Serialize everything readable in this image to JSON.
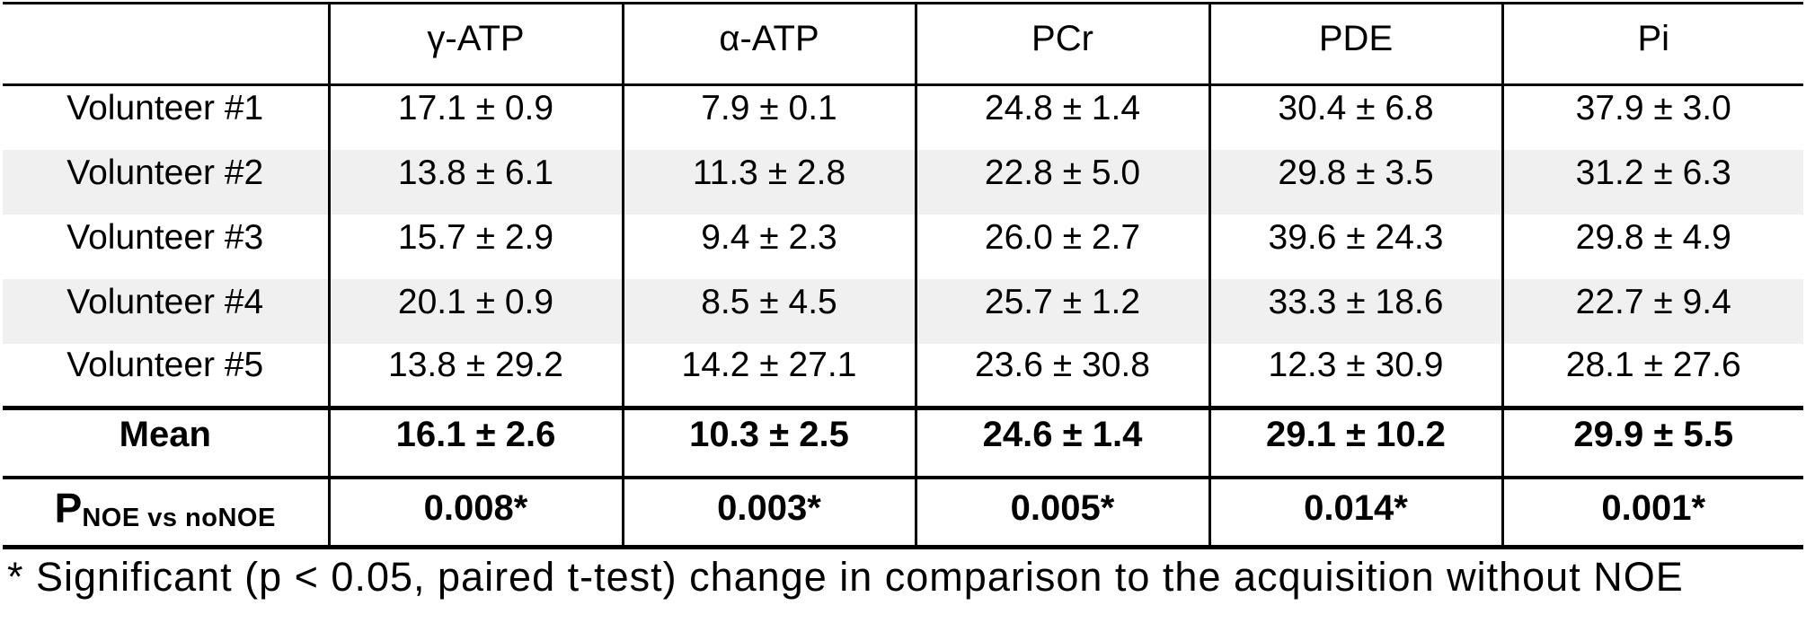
{
  "table": {
    "columns": [
      "",
      "γ-ATP",
      "α-ATP",
      "PCr",
      "PDE",
      "Pi"
    ],
    "volunteer_rows": [
      {
        "label": "Volunteer #1",
        "values": [
          "17.1 ± 0.9",
          "7.9 ± 0.1",
          "24.8 ± 1.4",
          "30.4 ± 6.8",
          "37.9 ± 3.0"
        ]
      },
      {
        "label": "Volunteer #2",
        "values": [
          "13.8 ± 6.1",
          "11.3 ± 2.8",
          "22.8 ± 5.0",
          "29.8 ± 3.5",
          "31.2 ± 6.3"
        ]
      },
      {
        "label": "Volunteer #3",
        "values": [
          "15.7 ± 2.9",
          "9.4 ± 2.3",
          "26.0 ± 2.7",
          "39.6 ± 24.3",
          "29.8 ± 4.9"
        ]
      },
      {
        "label": "Volunteer #4",
        "values": [
          "20.1 ± 0.9",
          "8.5 ± 4.5",
          "25.7 ± 1.2",
          "33.3 ± 18.6",
          "22.7 ± 9.4"
        ]
      },
      {
        "label": "Volunteer #5",
        "values": [
          "13.8 ± 29.2",
          "14.2 ± 27.1",
          "23.6 ± 30.8",
          "12.3 ± 30.9",
          "28.1 ± 27.6"
        ]
      }
    ],
    "mean_row": {
      "label": "Mean",
      "values": [
        "16.1 ± 2.6",
        "10.3 ± 2.5",
        "24.6 ± 1.4",
        "29.1 ± 10.2",
        "29.9 ± 5.5"
      ]
    },
    "p_row": {
      "label_main": "P",
      "label_sub": "NOE vs noNOE",
      "values": [
        "0.008*",
        "0.003*",
        "0.005*",
        "0.014*",
        "0.001*"
      ]
    }
  },
  "footnote": "* Significant (p < 0.05, paired t-test) change in comparison to the acquisition without NOE",
  "colors": {
    "row_alt_background": "#f0f0f0",
    "border": "#000000",
    "text": "#000000"
  }
}
